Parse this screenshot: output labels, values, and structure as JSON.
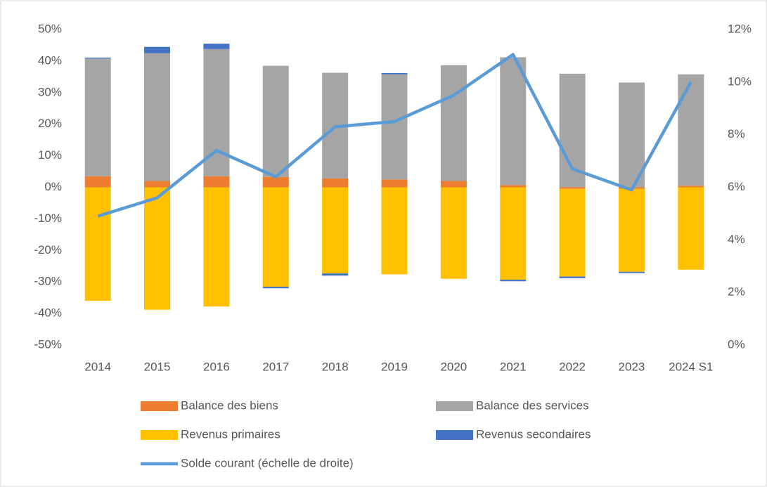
{
  "chart_data": {
    "type": "bar",
    "stacked": true,
    "categories": [
      "2014",
      "2015",
      "2016",
      "2017",
      "2018",
      "2019",
      "2020",
      "2021",
      "2022",
      "2023",
      "2024 S1"
    ],
    "series": [
      {
        "name": "Balance des biens",
        "color": "#ED7D31",
        "values": [
          3.5,
          2.0,
          3.5,
          3.3,
          2.8,
          2.5,
          2.0,
          0.7,
          -0.5,
          -0.5,
          0.5
        ]
      },
      {
        "name": "Balance des services",
        "color": "#A5A5A5",
        "values": [
          37.3,
          40.5,
          40.3,
          35.2,
          33.5,
          33.3,
          36.7,
          40.5,
          36.0,
          33.2,
          35.3
        ]
      },
      {
        "name": "Revenus primaires",
        "color": "#FFC000",
        "values": [
          -36.0,
          -38.8,
          -37.8,
          -31.5,
          -27.3,
          -27.6,
          -29.0,
          -29.3,
          -27.8,
          -26.3,
          -26.1
        ]
      },
      {
        "name": "Revenus secondaires",
        "color": "#4472C4",
        "values": [
          0.3,
          2.0,
          1.7,
          -0.5,
          -0.7,
          0.4,
          0,
          -0.5,
          -0.5,
          -0.4,
          0
        ]
      },
      {
        "name": "Solde courant (échelle de droite)",
        "color": "#5B9BD5",
        "type": "line",
        "axis": "y2",
        "values": [
          4.9,
          5.6,
          7.4,
          6.4,
          8.3,
          8.5,
          9.5,
          11.05,
          6.7,
          5.9,
          10.0
        ]
      }
    ],
    "ylim": [
      -50,
      50
    ],
    "yticks": [
      {
        "value": 50,
        "label": "50%"
      },
      {
        "value": 40,
        "label": "40%"
      },
      {
        "value": 30,
        "label": "30%"
      },
      {
        "value": 20,
        "label": "20%"
      },
      {
        "value": 10,
        "label": "10%"
      },
      {
        "value": 0,
        "label": "0%"
      },
      {
        "value": -10,
        "label": "-10%"
      },
      {
        "value": -20,
        "label": "-20%"
      },
      {
        "value": -30,
        "label": "-30%"
      },
      {
        "value": -40,
        "label": "-40%"
      },
      {
        "value": -50,
        "label": "-50%"
      }
    ],
    "y2lim": [
      0,
      12
    ],
    "y2ticks": [
      {
        "value": 12,
        "label": "12%"
      },
      {
        "value": 10,
        "label": "10%"
      },
      {
        "value": 8,
        "label": "8%"
      },
      {
        "value": 6,
        "label": "6%"
      },
      {
        "value": 4,
        "label": "4%"
      },
      {
        "value": 2,
        "label": "2%"
      },
      {
        "value": 0,
        "label": "0%"
      }
    ],
    "grid": false,
    "legend": "bottom"
  }
}
